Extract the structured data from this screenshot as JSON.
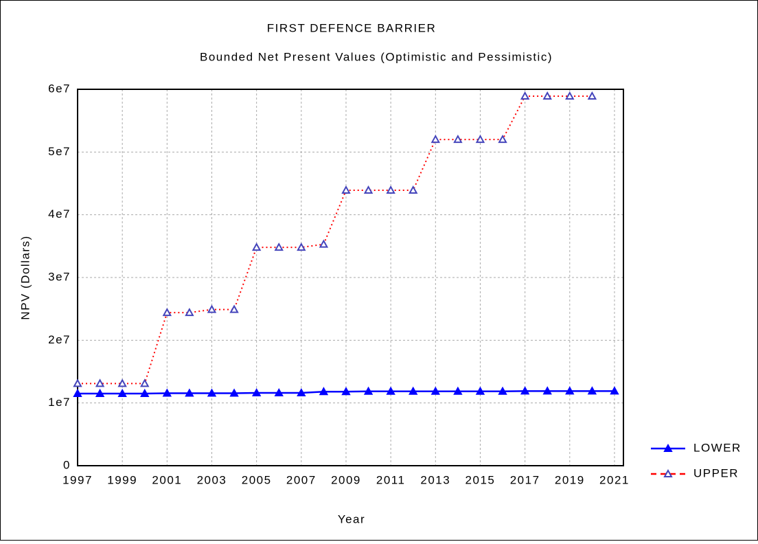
{
  "chart_data": {
    "type": "line",
    "title": "FIRST DEFENCE BARRIER",
    "subtitle": "Bounded Net Present Values (Optimistic and Pessimistic)",
    "x_label": "Year",
    "y_label": "NPV (Dollars)",
    "x": [
      1997,
      1998,
      1999,
      2000,
      2001,
      2002,
      2003,
      2004,
      2005,
      2006,
      2007,
      2008,
      2009,
      2010,
      2011,
      2012,
      2013,
      2014,
      2015,
      2016,
      2017,
      2018,
      2019,
      2020,
      2021
    ],
    "series": [
      {
        "name": "LOWER",
        "color": "#0000ff",
        "values": [
          11500000,
          11500000,
          11500000,
          11500000,
          11550000,
          11550000,
          11550000,
          11550000,
          11600000,
          11600000,
          11600000,
          11800000,
          11800000,
          11850000,
          11850000,
          11850000,
          11850000,
          11850000,
          11850000,
          11850000,
          11900000,
          11900000,
          11900000,
          11900000,
          11900000
        ]
      },
      {
        "name": "UPPER",
        "color": "#ff0000",
        "values": [
          13100000,
          13100000,
          13100000,
          13100000,
          24400000,
          24400000,
          24900000,
          24900000,
          34800000,
          34800000,
          34800000,
          35300000,
          43900000,
          43900000,
          43900000,
          43900000,
          52000000,
          52000000,
          52000000,
          52000000,
          58900000,
          58900000,
          58900000,
          58900000,
          null
        ]
      }
    ],
    "xlim": [
      1997,
      2021.4
    ],
    "xticks": [
      1997,
      1999,
      2001,
      2003,
      2005,
      2007,
      2009,
      2011,
      2013,
      2015,
      2017,
      2019,
      2021
    ],
    "ylim": [
      0,
      60000000
    ],
    "yticks": [
      0,
      {
        "value": 10000000,
        "label": "1e7"
      },
      {
        "value": 20000000,
        "label": "2e7"
      },
      {
        "value": 30000000,
        "label": "3e7"
      },
      {
        "value": 40000000,
        "label": "4e7"
      },
      {
        "value": 50000000,
        "label": "5e7"
      },
      {
        "value": 60000000,
        "label": "6e7"
      }
    ],
    "grid": true,
    "legend": "right"
  }
}
